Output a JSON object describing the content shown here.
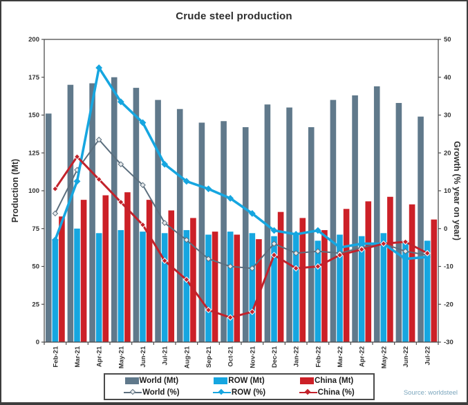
{
  "title": "Crude steel production",
  "source": "Source: worldsteel",
  "colors": {
    "world_bar": "#60798b",
    "row_bar": "#16a6e0",
    "china_bar": "#cc2027",
    "world_line": "#5c6f7e",
    "world_marker_fill": "#e7eaec",
    "row_line": "#16a6e0",
    "china_line": "#c2222b",
    "china_marker_fill": "#c2222b",
    "axis": "#4d4d4d",
    "tick_text": "#333333"
  },
  "legend": {
    "world_mt": "World (Mt)",
    "row_mt": "ROW (Mt)",
    "china_mt": "China (Mt)",
    "world_pct": "World (%)",
    "row_pct": "ROW (%)",
    "china_pct": "China (%)"
  },
  "chart_data": {
    "type": "bar+line",
    "title": "Crude steel production",
    "left_axis": {
      "label": "Production (Mt)",
      "min": 0,
      "max": 200,
      "step": 25
    },
    "right_axis": {
      "label": "Growth (% year on year)",
      "min": -30,
      "max": 50,
      "step": 10
    },
    "grid": false,
    "legend_position": "bottom",
    "categories": [
      "Feb-21",
      "Mar-21",
      "Apr-21",
      "May-21",
      "Jun-21",
      "Jul-21",
      "Aug-21",
      "Sep-21",
      "Oct-21",
      "Nov-21",
      "Dec-21",
      "Jan-22",
      "Feb-22",
      "Mar-22",
      "Apr-22",
      "May-22",
      "Jun-22",
      "Jul-22"
    ],
    "series": [
      {
        "name": "World (Mt)",
        "render": "bar",
        "axis": "left",
        "color_key": "world_bar",
        "values": [
          151,
          170,
          171,
          175,
          168,
          160,
          154,
          145,
          146,
          142,
          157,
          155,
          142,
          160,
          163,
          169,
          158,
          149
        ]
      },
      {
        "name": "ROW (Mt)",
        "render": "bar",
        "axis": "left",
        "color_key": "row_bar",
        "values": [
          68,
          75,
          72,
          74,
          73,
          72,
          74,
          71,
          73,
          72,
          70,
          71,
          67,
          71,
          70,
          72,
          67,
          67
        ]
      },
      {
        "name": "China (Mt)",
        "render": "bar",
        "axis": "left",
        "color_key": "china_bar",
        "values": [
          83,
          94,
          97,
          99,
          94,
          87,
          82,
          73,
          71,
          68,
          86,
          82,
          74,
          88,
          93,
          96,
          91,
          81
        ]
      },
      {
        "name": "World (%)",
        "render": "line",
        "axis": "right",
        "color_key": "world_line",
        "values": [
          4,
          15.5,
          23.5,
          17,
          11.5,
          1.5,
          -3,
          -8,
          -10,
          -10.5,
          -4,
          -6.5,
          -6,
          -6.5,
          -5,
          -4,
          -6,
          -7
        ]
      },
      {
        "name": "ROW (%)",
        "render": "line",
        "axis": "right",
        "color_key": "row_line",
        "values": [
          -3,
          12.5,
          42.5,
          33.5,
          28,
          17,
          12.5,
          10.5,
          8,
          4,
          -0.5,
          -1.5,
          -0.5,
          -5,
          -4,
          -4,
          -8,
          -7.5
        ]
      },
      {
        "name": "China (%)",
        "render": "line",
        "axis": "right",
        "color_key": "china_line",
        "values": [
          10.5,
          19,
          13,
          7,
          1,
          -8.5,
          -13.5,
          -21.5,
          -23.5,
          -22,
          -7,
          -10.5,
          -10,
          -7,
          -5.5,
          -4,
          -3.5,
          -6.5
        ]
      }
    ]
  }
}
